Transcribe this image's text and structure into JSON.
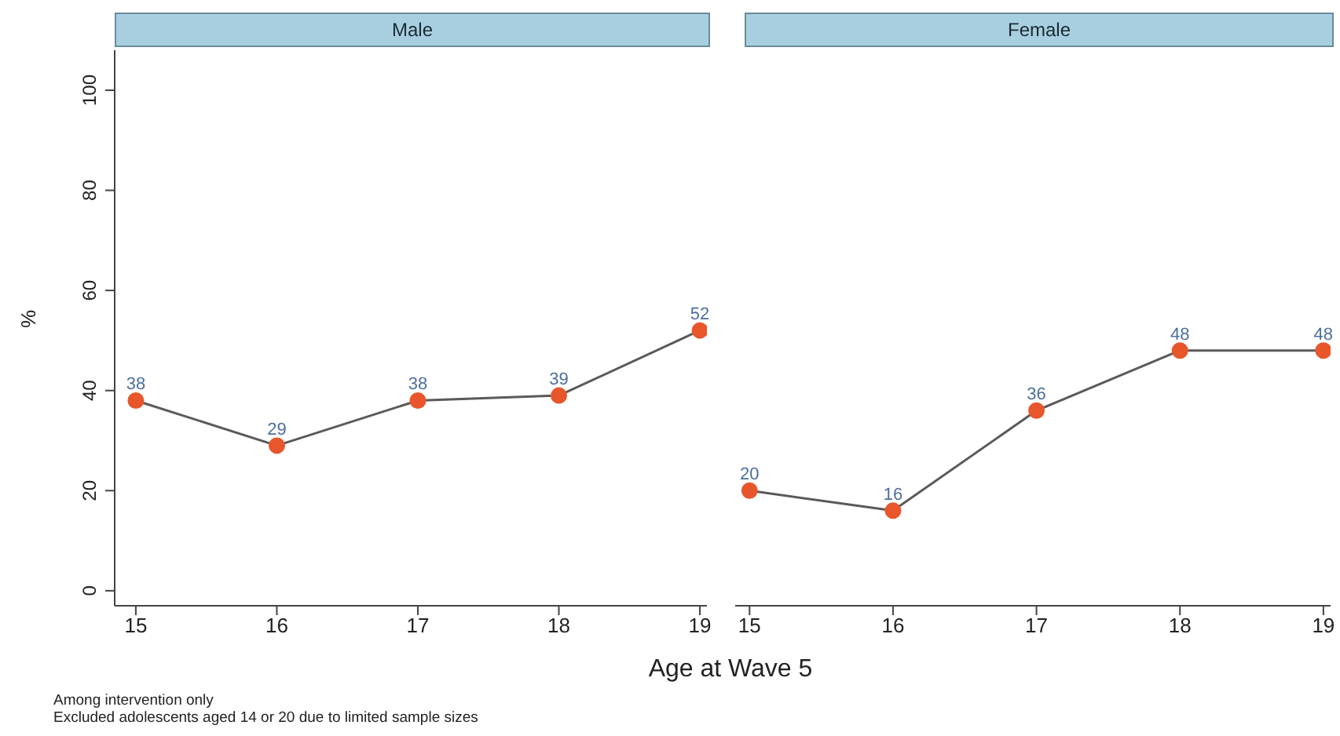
{
  "chart_data": [
    {
      "type": "line",
      "title": "Male",
      "ylabel": "%",
      "xlabel": "Age at Wave 5",
      "x": [
        15,
        16,
        17,
        18,
        19
      ],
      "series": [
        {
          "color": "#e8562c",
          "values": [
            38,
            29,
            38,
            39,
            52
          ]
        }
      ],
      "xlim": [
        14.85,
        19.05
      ],
      "xticks": [
        15,
        16,
        17,
        18,
        19
      ],
      "ylim": [
        -3,
        108
      ],
      "yticks": [
        0,
        20,
        40,
        60,
        80,
        100
      ],
      "marker": "circle",
      "data_labels": true,
      "grid": false,
      "legend": false,
      "annotations": [
        "Among intervention only",
        "Excluded adolescents aged 14 or 20 due to limited sample sizes"
      ]
    },
    {
      "type": "line",
      "title": "Female",
      "x": [
        15,
        16,
        17,
        18,
        19
      ],
      "series": [
        {
          "color": "#e8562c",
          "values": [
            20,
            16,
            36,
            48,
            48
          ]
        }
      ],
      "xlim": [
        14.9,
        19.05
      ],
      "xticks": [
        15,
        16,
        17,
        18,
        19
      ],
      "tick_labels": "x",
      "marker": "circle",
      "data_labels": true,
      "grid": false,
      "legend": false
    }
  ]
}
